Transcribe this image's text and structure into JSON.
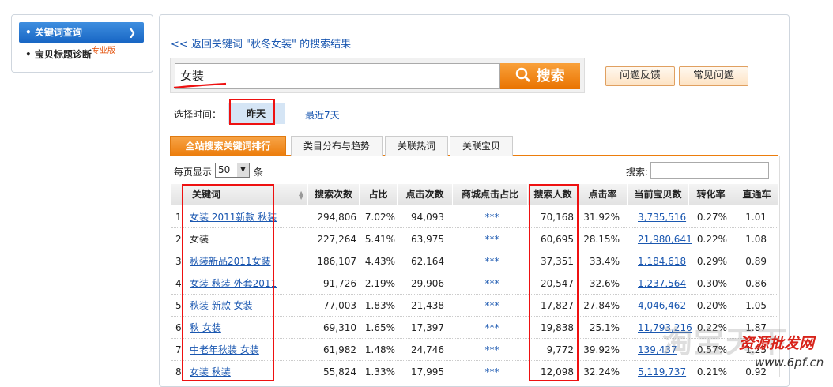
{
  "sidebar": {
    "items": [
      {
        "label": "关键词查询"
      },
      {
        "label": "宝贝标题诊断",
        "badge": "专业版"
      }
    ]
  },
  "back_link": "<< 返回关键词 \"秋冬女装\" 的搜索结果",
  "search": {
    "query": "女装",
    "button": "搜索"
  },
  "help_buttons": [
    "问题反馈",
    "常见问题"
  ],
  "time": {
    "label": "选择时间：",
    "options": [
      "昨天",
      "最近7天"
    ]
  },
  "tabs": [
    "全站搜索关键词排行",
    "类目分布与趋势",
    "关联热词",
    "关联宝贝"
  ],
  "table": {
    "page_size_label": "每页显示",
    "page_size": "50",
    "page_size_unit": "条",
    "search_label": "搜索:",
    "columns": [
      "关键词",
      "搜索次数",
      "占比",
      "点击次数",
      "商城点击占比",
      "搜索人数",
      "点击率",
      "当前宝贝数",
      "转化率",
      "直通车"
    ],
    "rows": [
      [
        "1",
        "女装 2011新款 秋装",
        "294,806",
        "7.02%",
        "94,093",
        "***",
        "70,168",
        "31.92%",
        "3,735,516",
        "0.27%",
        "1.01"
      ],
      [
        "2",
        "女装",
        "227,264",
        "5.41%",
        "63,975",
        "***",
        "60,695",
        "28.15%",
        "21,980,641",
        "0.22%",
        "1.08"
      ],
      [
        "3",
        "秋装新品2011女装",
        "186,107",
        "4.43%",
        "62,164",
        "***",
        "37,351",
        "33.4%",
        "1,184,618",
        "0.29%",
        "0.89"
      ],
      [
        "4",
        "女装 秋装 外套2011",
        "91,726",
        "2.19%",
        "29,906",
        "***",
        "20,547",
        "32.6%",
        "1,237,564",
        "0.30%",
        "0.86"
      ],
      [
        "5",
        "秋装 新款 女装",
        "77,003",
        "1.83%",
        "21,438",
        "***",
        "17,827",
        "27.84%",
        "4,046,462",
        "0.20%",
        "1.05"
      ],
      [
        "6",
        "秋 女装",
        "69,310",
        "1.65%",
        "17,397",
        "***",
        "19,838",
        "25.1%",
        "11,793,216",
        "0.22%",
        "1.87"
      ],
      [
        "7",
        "中老年秋装 女装",
        "61,982",
        "1.48%",
        "24,746",
        "***",
        "9,772",
        "39.92%",
        "139,437",
        "0.57%",
        "1.25"
      ],
      [
        "8",
        "女装 秋装",
        "55,824",
        "1.33%",
        "17,995",
        "***",
        "12,098",
        "32.24%",
        "5,119,737",
        "0.21%",
        "0.92"
      ]
    ]
  },
  "watermark": {
    "brand": "淘宝天下",
    "site": "资源批发网",
    "url": "www.6pf.cn"
  }
}
